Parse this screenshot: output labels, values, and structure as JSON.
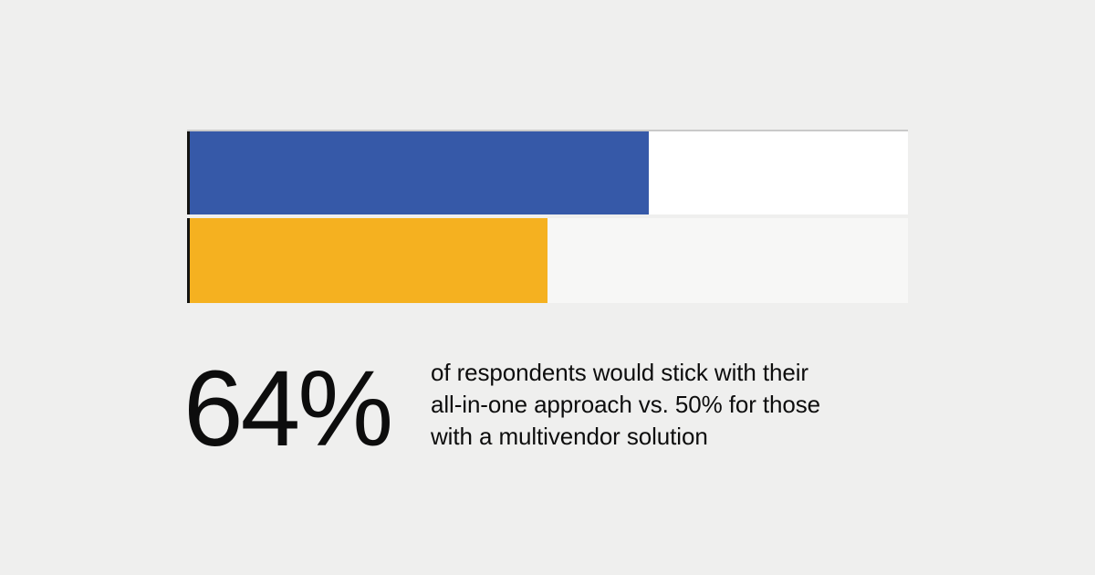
{
  "palette": {
    "background": "#efefee",
    "bar_blue": "#3659a8",
    "bar_yellow": "#f5b120",
    "track_top_border": "#c9c9c9",
    "axis_line": "#131310",
    "text": "#0d0d0d"
  },
  "chart_data": {
    "type": "bar",
    "orientation": "horizontal",
    "title": "",
    "xlabel": "",
    "ylabel": "",
    "xlim": [
      0,
      100
    ],
    "grid": false,
    "legend": false,
    "categories": [
      "All-in-one approach",
      "Multivendor solution"
    ],
    "values": [
      64,
      50
    ],
    "value_unit": "%",
    "bar_colors": [
      "#3659a8",
      "#f5b120"
    ],
    "track_colors": [
      "#ffffff",
      "#f7f7f6"
    ]
  },
  "stat": {
    "value": "64%",
    "description": "of respondents would stick with their\nall-in-one approach vs. 50% for those\nwith a multivendor solution"
  }
}
